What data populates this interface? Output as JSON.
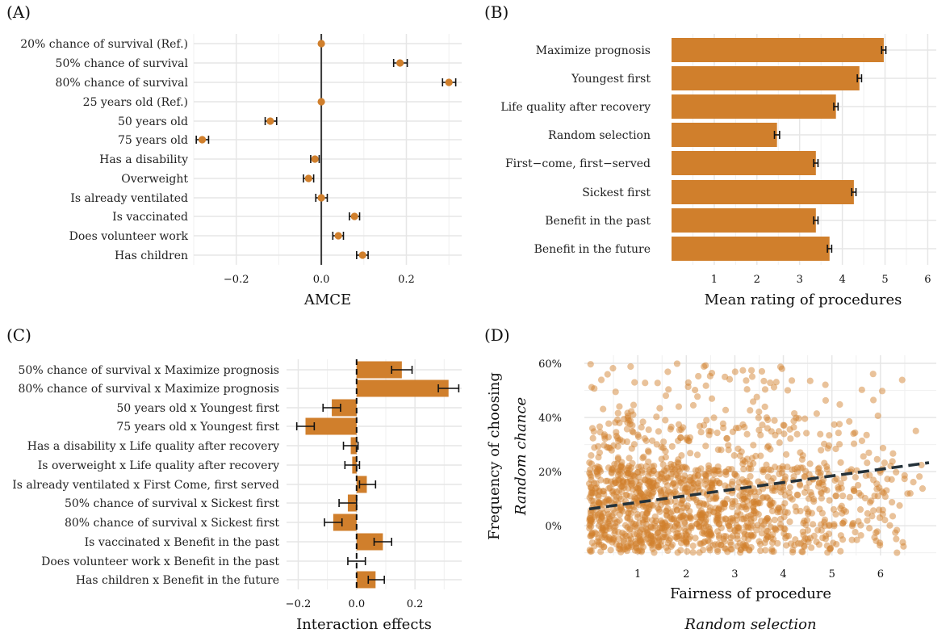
{
  "figure": {
    "panels": [
      "(A)",
      "(B)",
      "(C)",
      "(D)"
    ]
  },
  "colors": {
    "accent": "#d07f2c",
    "grid": "#e6e6e6",
    "zero_line": "#3a3a3a",
    "trend": "#25323a"
  },
  "chart_data": [
    {
      "type": "scatter",
      "id": "A",
      "panel_label": "(A)",
      "title": "",
      "xlabel": "AMCE",
      "ylabel": "",
      "xlim": [
        -0.3,
        0.33
      ],
      "xticks": [
        -0.2,
        0.0,
        0.2
      ],
      "xtick_labels": [
        "−0.2",
        "0.0",
        "0.2"
      ],
      "zero_line": 0,
      "categories": [
        "20% chance of survival (Ref.)",
        "50% chance of survival",
        "80% chance of survival",
        "25 years old (Ref.)",
        "50 years old",
        "75 years old",
        "Has a disability",
        "Overweight",
        "Is already ventilated",
        "Is vaccinated",
        "Does volunteer work",
        "Has children"
      ],
      "values": [
        0.0,
        0.185,
        0.3,
        0.0,
        -0.12,
        -0.28,
        -0.015,
        -0.03,
        0.0,
        0.078,
        0.04,
        0.097
      ],
      "ci_low": [
        0.0,
        0.17,
        0.285,
        0.0,
        -0.132,
        -0.294,
        -0.025,
        -0.042,
        -0.013,
        0.066,
        0.027,
        0.083
      ],
      "ci_high": [
        0.0,
        0.202,
        0.316,
        0.0,
        -0.105,
        -0.265,
        -0.005,
        -0.018,
        0.014,
        0.09,
        0.052,
        0.11
      ]
    },
    {
      "type": "bar",
      "id": "B",
      "panel_label": "(B)",
      "title": "",
      "xlabel": "Mean rating of procedures",
      "ylabel": "",
      "xlim": [
        0,
        6.2
      ],
      "xticks": [
        1,
        2,
        3,
        4,
        5,
        6
      ],
      "xtick_labels": [
        "1",
        "2",
        "3",
        "4",
        "5",
        "6"
      ],
      "categories": [
        "Maximize prognosis",
        "Youngest first",
        "Life quality after recovery",
        "Random selection",
        "First−come, first−served",
        "Sickest first",
        "Benefit in the past",
        "Benefit in the future"
      ],
      "values": [
        4.97,
        4.4,
        3.85,
        2.47,
        3.38,
        4.27,
        3.38,
        3.7
      ],
      "err": [
        0.05,
        0.05,
        0.05,
        0.06,
        0.05,
        0.05,
        0.05,
        0.05
      ]
    },
    {
      "type": "bar",
      "id": "C",
      "panel_label": "(C)",
      "title": "",
      "xlabel": "Interaction effects",
      "ylabel": "",
      "xlim": [
        -0.24,
        0.36
      ],
      "xticks": [
        -0.2,
        0.0,
        0.2
      ],
      "xtick_labels": [
        "−0.2",
        "0.0",
        "0.2"
      ],
      "zero_line": 0,
      "categories": [
        "50% chance of survival x Maximize prognosis",
        "80% chance of survival x Maximize prognosis",
        "50 years old x Youngest first",
        "75 years old x Youngest first",
        "Has a disability x Life quality after recovery",
        "Is overweight x Life quality after recovery",
        "Is already ventilated x First Come, first served",
        "50% chance of survival x Sickest first",
        "80% chance of survival x Sickest first",
        "Is vaccinated x Benefit in the past",
        "Does volunteer work x Benefit in the past",
        "Has children x Benefit in the future"
      ],
      "values": [
        0.155,
        0.315,
        -0.085,
        -0.175,
        -0.02,
        -0.015,
        0.035,
        -0.03,
        -0.08,
        0.09,
        0.0,
        0.065
      ],
      "ci_low": [
        0.12,
        0.28,
        -0.115,
        -0.205,
        -0.045,
        -0.04,
        0.01,
        -0.06,
        -0.11,
        0.06,
        -0.03,
        0.04
      ],
      "ci_high": [
        0.19,
        0.35,
        -0.055,
        -0.145,
        0.005,
        0.01,
        0.065,
        0.0,
        -0.05,
        0.12,
        0.03,
        0.095
      ]
    },
    {
      "type": "scatter",
      "id": "D",
      "panel_label": "(D)",
      "title": "",
      "xlabel": "Fairness of procedure",
      "xlabel_sub": "Random selection",
      "ylabel": "Frequency of choosing",
      "ylabel_sub": "Random chance",
      "xlim": [
        -0.1,
        7.15
      ],
      "ylim": [
        -0.11,
        0.63
      ],
      "xticks": [
        1,
        2,
        3,
        4,
        5,
        6
      ],
      "xtick_labels": [
        "1",
        "2",
        "3",
        "4",
        "5",
        "6"
      ],
      "yticks": [
        0.0,
        0.2,
        0.4,
        0.6
      ],
      "ytick_labels": [
        "0%",
        "20%",
        "40%",
        "60%"
      ],
      "n_points": 1500,
      "point_generation": "jittered simulated respondents with density decreasing from low to high fairness",
      "trend": {
        "x": [
          0.0,
          7.0
        ],
        "y": [
          0.062,
          0.233
        ],
        "style": "dashed"
      }
    }
  ]
}
